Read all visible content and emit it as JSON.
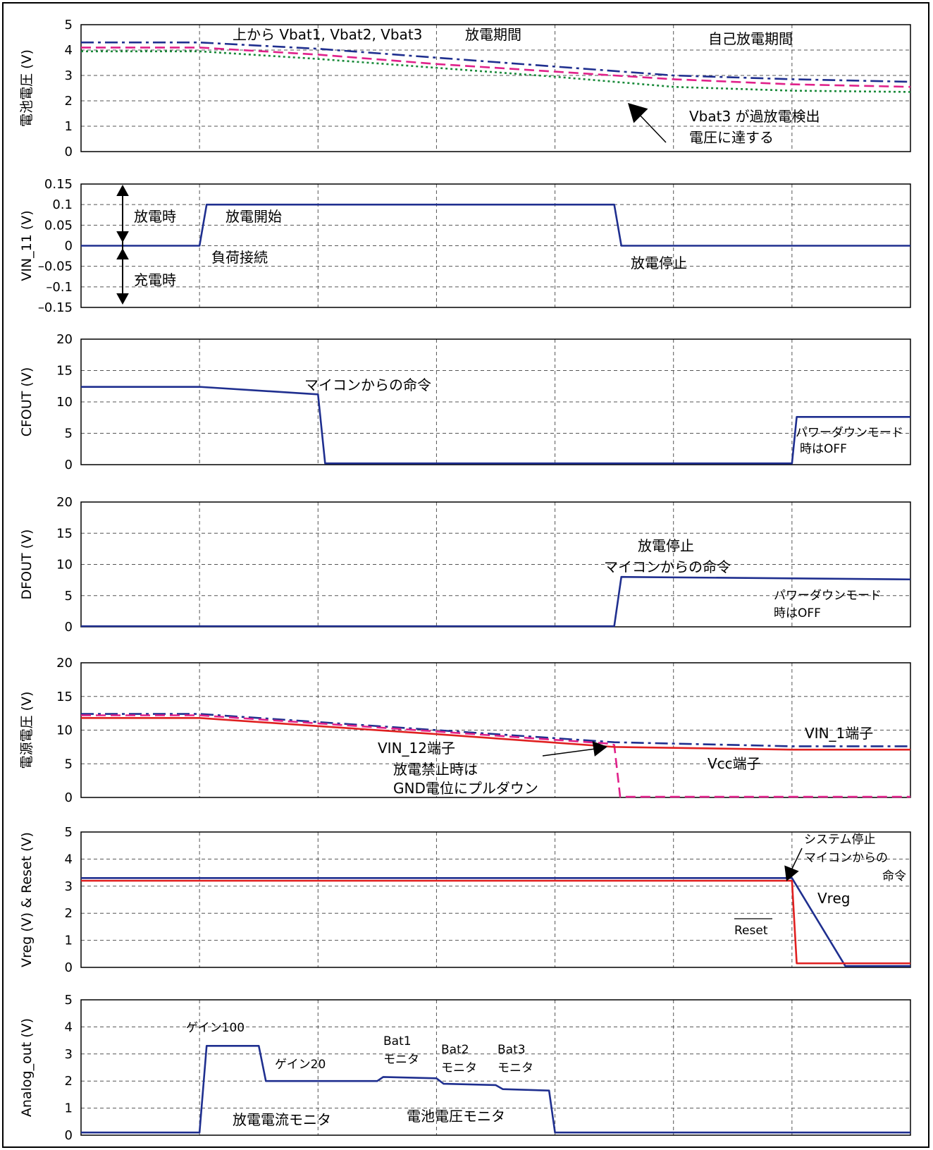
{
  "chart_data": [
    {
      "type": "line",
      "ylabel": "電池電圧 (V)",
      "ylim": [
        0,
        5
      ],
      "yticks": [
        "0",
        "1",
        "2",
        "3",
        "4",
        "5"
      ],
      "x": [
        0,
        1,
        2,
        3,
        4,
        5,
        6,
        7
      ],
      "series": [
        {
          "name": "Vbat1",
          "color": "#1f2f8f",
          "style": "dashdot",
          "values": [
            4.3,
            4.3,
            4.05,
            3.7,
            3.35,
            3.0,
            2.85,
            2.75
          ]
        },
        {
          "name": "Vbat2",
          "color": "#e0218a",
          "style": "dashed",
          "values": [
            4.1,
            4.1,
            3.82,
            3.45,
            3.15,
            2.85,
            2.65,
            2.55
          ]
        },
        {
          "name": "Vbat3",
          "color": "#1a8a3a",
          "style": "dotted",
          "values": [
            3.95,
            3.95,
            3.65,
            3.3,
            2.95,
            2.55,
            2.4,
            2.35
          ]
        }
      ],
      "annotations": [
        {
          "text": "上から Vbat1, Vbat2, Vbat3"
        },
        {
          "text": "放電期間"
        },
        {
          "text": "自己放電期間"
        },
        {
          "text": "Vbat3 が過放電検出"
        },
        {
          "text": "電圧に達する"
        }
      ]
    },
    {
      "type": "line",
      "ylabel": "VIN_11 (V)",
      "ylim": [
        -0.15,
        0.15
      ],
      "yticks": [
        "–0.15",
        "–0.1",
        "–0.05",
        "0",
        "0.05",
        "0.1",
        "0.15"
      ],
      "series": [
        {
          "color": "#1f2f8f",
          "style": "solid",
          "points": [
            [
              0,
              0
            ],
            [
              1.0,
              0
            ],
            [
              1.06,
              0.1
            ],
            [
              4.5,
              0.1
            ],
            [
              4.56,
              0
            ],
            [
              7,
              0
            ]
          ]
        }
      ],
      "annotations": [
        {
          "text": "放電時"
        },
        {
          "text": "充電時"
        },
        {
          "text": "放電開始"
        },
        {
          "text": "負荷接続"
        },
        {
          "text": "放電停止"
        }
      ]
    },
    {
      "type": "line",
      "ylabel": "CFOUT (V)",
      "ylim": [
        0,
        20
      ],
      "yticks": [
        "0",
        "5",
        "10",
        "15",
        "20"
      ],
      "series": [
        {
          "color": "#1f2f8f",
          "style": "solid",
          "points": [
            [
              0,
              12.4
            ],
            [
              1.0,
              12.4
            ],
            [
              2.0,
              11.2
            ],
            [
              2.06,
              0.2
            ],
            [
              6.0,
              0.2
            ],
            [
              6.04,
              7.6
            ],
            [
              7,
              7.6
            ]
          ]
        }
      ],
      "annotations": [
        {
          "text": "マイコンからの命令"
        },
        {
          "text": "パワーダウンモード"
        },
        {
          "text": "時はOFF"
        }
      ]
    },
    {
      "type": "line",
      "ylabel": "DFOUT (V)",
      "ylim": [
        0,
        20
      ],
      "yticks": [
        "0",
        "5",
        "10",
        "15",
        "20"
      ],
      "series": [
        {
          "color": "#1f2f8f",
          "style": "solid",
          "points": [
            [
              0,
              0.1
            ],
            [
              4.5,
              0.1
            ],
            [
              4.56,
              8.0
            ],
            [
              7,
              7.6
            ]
          ]
        }
      ],
      "annotations": [
        {
          "text": "放電停止"
        },
        {
          "text": "マイコンからの命令"
        },
        {
          "text": "パワーダウンモード"
        },
        {
          "text": "時はOFF"
        }
      ]
    },
    {
      "type": "line",
      "ylabel": "電源電圧 (V)",
      "ylim": [
        0,
        20
      ],
      "yticks": [
        "0",
        "5",
        "10",
        "15",
        "20"
      ],
      "series": [
        {
          "name": "VIN_1端子",
          "color": "#1f2f8f",
          "style": "dashdot",
          "points": [
            [
              0,
              12.4
            ],
            [
              1.0,
              12.4
            ],
            [
              2.0,
              11.2
            ],
            [
              3.0,
              10.0
            ],
            [
              4.5,
              8.2
            ],
            [
              6.0,
              7.6
            ],
            [
              7,
              7.6
            ]
          ]
        },
        {
          "name": "VIN_12端子",
          "color": "#e0218a",
          "style": "dashed",
          "points": [
            [
              0,
              12.2
            ],
            [
              1.0,
              12.2
            ],
            [
              2.0,
              11.0
            ],
            [
              3.0,
              9.8
            ],
            [
              4.45,
              8.0
            ],
            [
              4.5,
              7.8
            ],
            [
              4.55,
              0.1
            ],
            [
              7,
              0.1
            ]
          ]
        },
        {
          "name": "Vcc端子",
          "color": "#e02020",
          "style": "solid",
          "points": [
            [
              0,
              11.8
            ],
            [
              1.0,
              11.8
            ],
            [
              2.0,
              10.6
            ],
            [
              3.0,
              9.4
            ],
            [
              4.5,
              7.5
            ],
            [
              6.0,
              7.1
            ],
            [
              7,
              7.1
            ]
          ]
        }
      ],
      "annotations": [
        {
          "text": "VIN_1端子"
        },
        {
          "text": "VIN_12端子"
        },
        {
          "text": "放電禁止時は"
        },
        {
          "text": "GND電位にプルダウン"
        },
        {
          "text": "Vcc端子"
        }
      ]
    },
    {
      "type": "line",
      "ylabel": "Vreg (V) & Reset (V)",
      "ylim": [
        0,
        5
      ],
      "yticks": [
        "0",
        "1",
        "2",
        "3",
        "4",
        "5"
      ],
      "series": [
        {
          "name": "Vreg",
          "color": "#1f2f8f",
          "style": "solid",
          "points": [
            [
              0,
              3.3
            ],
            [
              6.0,
              3.3
            ],
            [
              6.45,
              0.05
            ],
            [
              7,
              0.05
            ]
          ]
        },
        {
          "name": "Reset",
          "color": "#e02020",
          "style": "solid",
          "points": [
            [
              0,
              3.2
            ],
            [
              6.0,
              3.2
            ],
            [
              6.04,
              0.15
            ],
            [
              7,
              0.15
            ]
          ]
        }
      ],
      "annotations": [
        {
          "text": "システム停止"
        },
        {
          "text": "マイコンからの"
        },
        {
          "text": "命令"
        },
        {
          "text": "Vreg"
        },
        {
          "text": "Reset"
        }
      ]
    },
    {
      "type": "line",
      "ylabel": "Analog_out (V)",
      "ylim": [
        0,
        5
      ],
      "yticks": [
        "0",
        "1",
        "2",
        "3",
        "4",
        "5"
      ],
      "series": [
        {
          "color": "#1f2f8f",
          "style": "solid",
          "points": [
            [
              0,
              0.1
            ],
            [
              1.0,
              0.1
            ],
            [
              1.06,
              3.3
            ],
            [
              1.5,
              3.3
            ],
            [
              1.56,
              2.0
            ],
            [
              2.5,
              2.0
            ],
            [
              2.55,
              2.15
            ],
            [
              3.0,
              2.1
            ],
            [
              3.06,
              1.9
            ],
            [
              3.5,
              1.85
            ],
            [
              3.56,
              1.7
            ],
            [
              3.95,
              1.65
            ],
            [
              4.0,
              0.1
            ],
            [
              7,
              0.1
            ]
          ]
        }
      ],
      "annotations": [
        {
          "text": "ゲイン100"
        },
        {
          "text": "ゲイン20"
        },
        {
          "text": "Bat1"
        },
        {
          "text": "モニタ"
        },
        {
          "text": "Bat2"
        },
        {
          "text": "モニタ"
        },
        {
          "text": "Bat3"
        },
        {
          "text": "モニタ"
        },
        {
          "text": "放電電流モニタ"
        },
        {
          "text": "電池電圧モニタ"
        }
      ]
    }
  ]
}
